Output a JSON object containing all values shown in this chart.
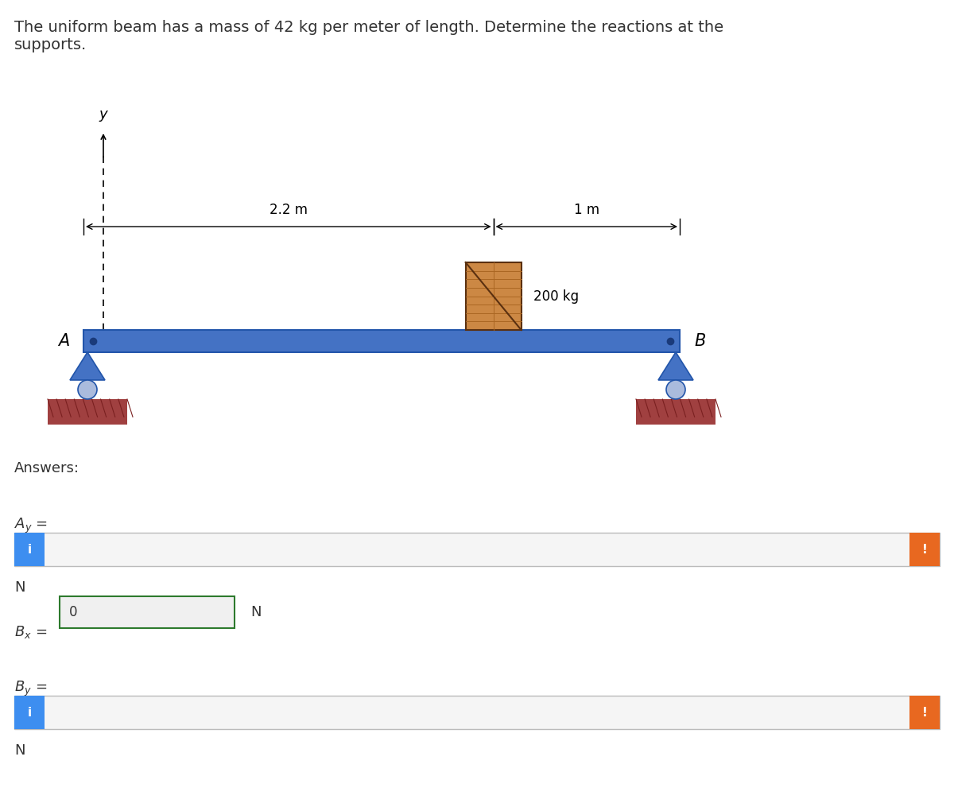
{
  "title_text": "The uniform beam has a mass of 42 kg per meter of length. Determine the reactions at the\nsupports.",
  "title_fontsize": 14,
  "title_color": "#333333",
  "background_color": "#ffffff",
  "beam_color": "#4472c4",
  "beam_dark": "#2255aa",
  "support_color": "#4472c4",
  "ground_color": "#a04040",
  "box_color": "#cc7733",
  "box_label": "200 kg",
  "dim_22_label": "2.2 m",
  "dim_1_label": "1 m",
  "label_A": "A",
  "label_B": "B",
  "label_y": "y",
  "answers_label": "Answers:",
  "N_label": "N",
  "Bx_value": "0",
  "blue_button_color": "#3d8ef0",
  "orange_button_color": "#e86820",
  "green_border_color": "#2d7a2d",
  "info_char": "i",
  "exclaim_char": "!"
}
